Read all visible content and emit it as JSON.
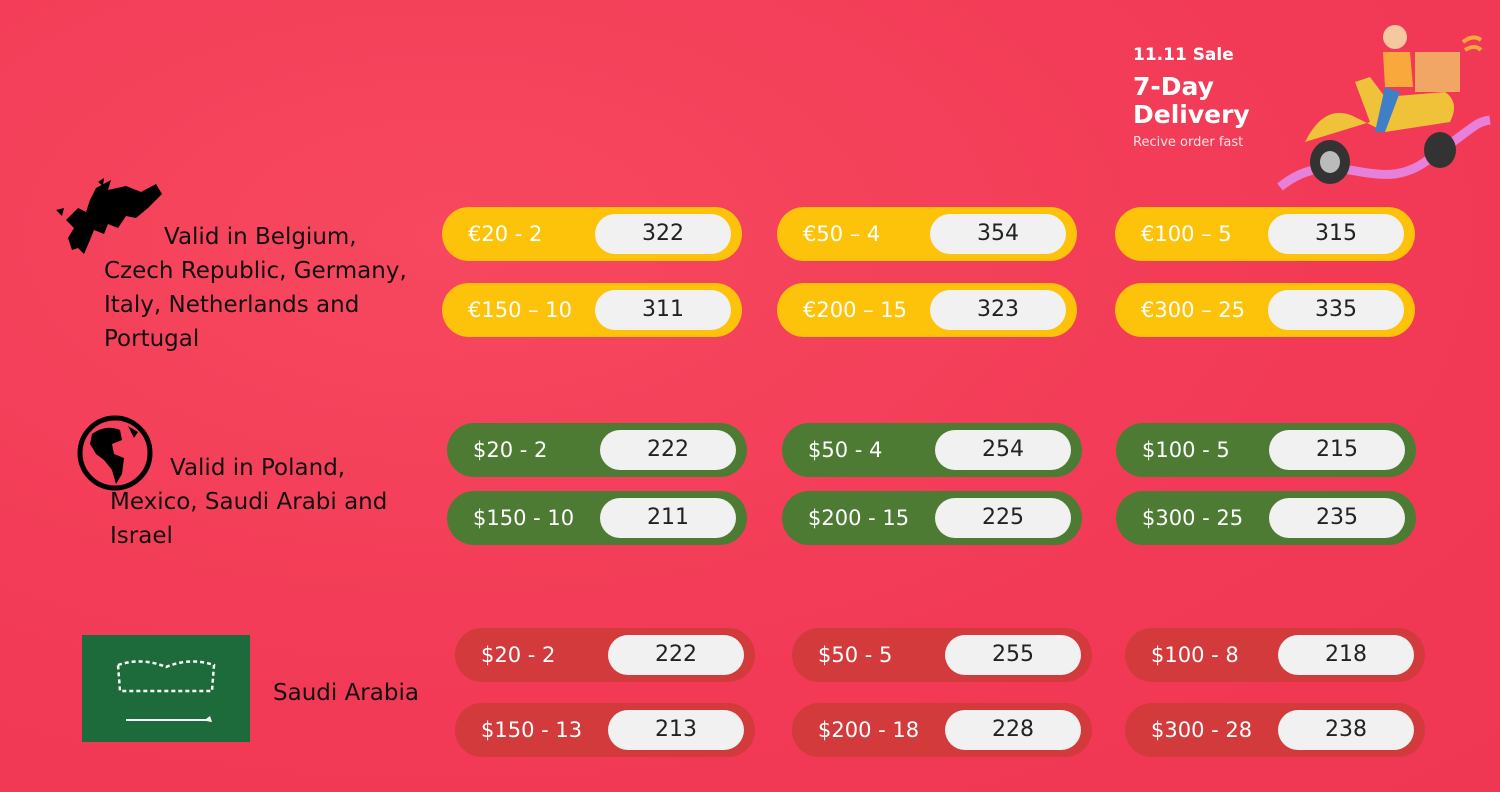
{
  "banner": {
    "sale": "11.11 Sale",
    "headline_1": "7-Day",
    "headline_2": "Delivery",
    "tagline": "Recive order fast"
  },
  "colors": {
    "background": "#f53d59",
    "europe": "#fdc30b",
    "global": "#4e7b34",
    "saudi": "#d23a3c"
  },
  "groups": [
    {
      "icon": "europe-map-icon",
      "label": "Valid in Belgium, Czech Republic, Germany, Italy, Netherlands and Portugal",
      "coupons": [
        {
          "code": "€20 - 2",
          "value": "322"
        },
        {
          "code": "€50 – 4",
          "value": "354"
        },
        {
          "code": "€100 – 5",
          "value": "315"
        },
        {
          "code": "€150 – 10",
          "value": "311"
        },
        {
          "code": "€200 – 15",
          "value": "323"
        },
        {
          "code": "€300 – 25",
          "value": "335"
        }
      ]
    },
    {
      "icon": "globe-icon",
      "label": "Valid in Poland, Mexico, Saudi Arabi and Israel",
      "coupons": [
        {
          "code": "$20 - 2",
          "value": "222"
        },
        {
          "code": "$50 - 4",
          "value": "254"
        },
        {
          "code": "$100 - 5",
          "value": "215"
        },
        {
          "code": "$150 - 10",
          "value": "211"
        },
        {
          "code": "$200 - 15",
          "value": "225"
        },
        {
          "code": "$300 - 25",
          "value": "235"
        }
      ]
    },
    {
      "icon": "saudi-flag-icon",
      "label": "Saudi Arabia",
      "coupons": [
        {
          "code": "$20 - 2",
          "value": "222"
        },
        {
          "code": "$50 - 5",
          "value": "255"
        },
        {
          "code": "$100 - 8",
          "value": "218"
        },
        {
          "code": "$150 - 13",
          "value": "213"
        },
        {
          "code": "$200 - 18",
          "value": "228"
        },
        {
          "code": "$300 - 28",
          "value": "238"
        }
      ]
    }
  ]
}
